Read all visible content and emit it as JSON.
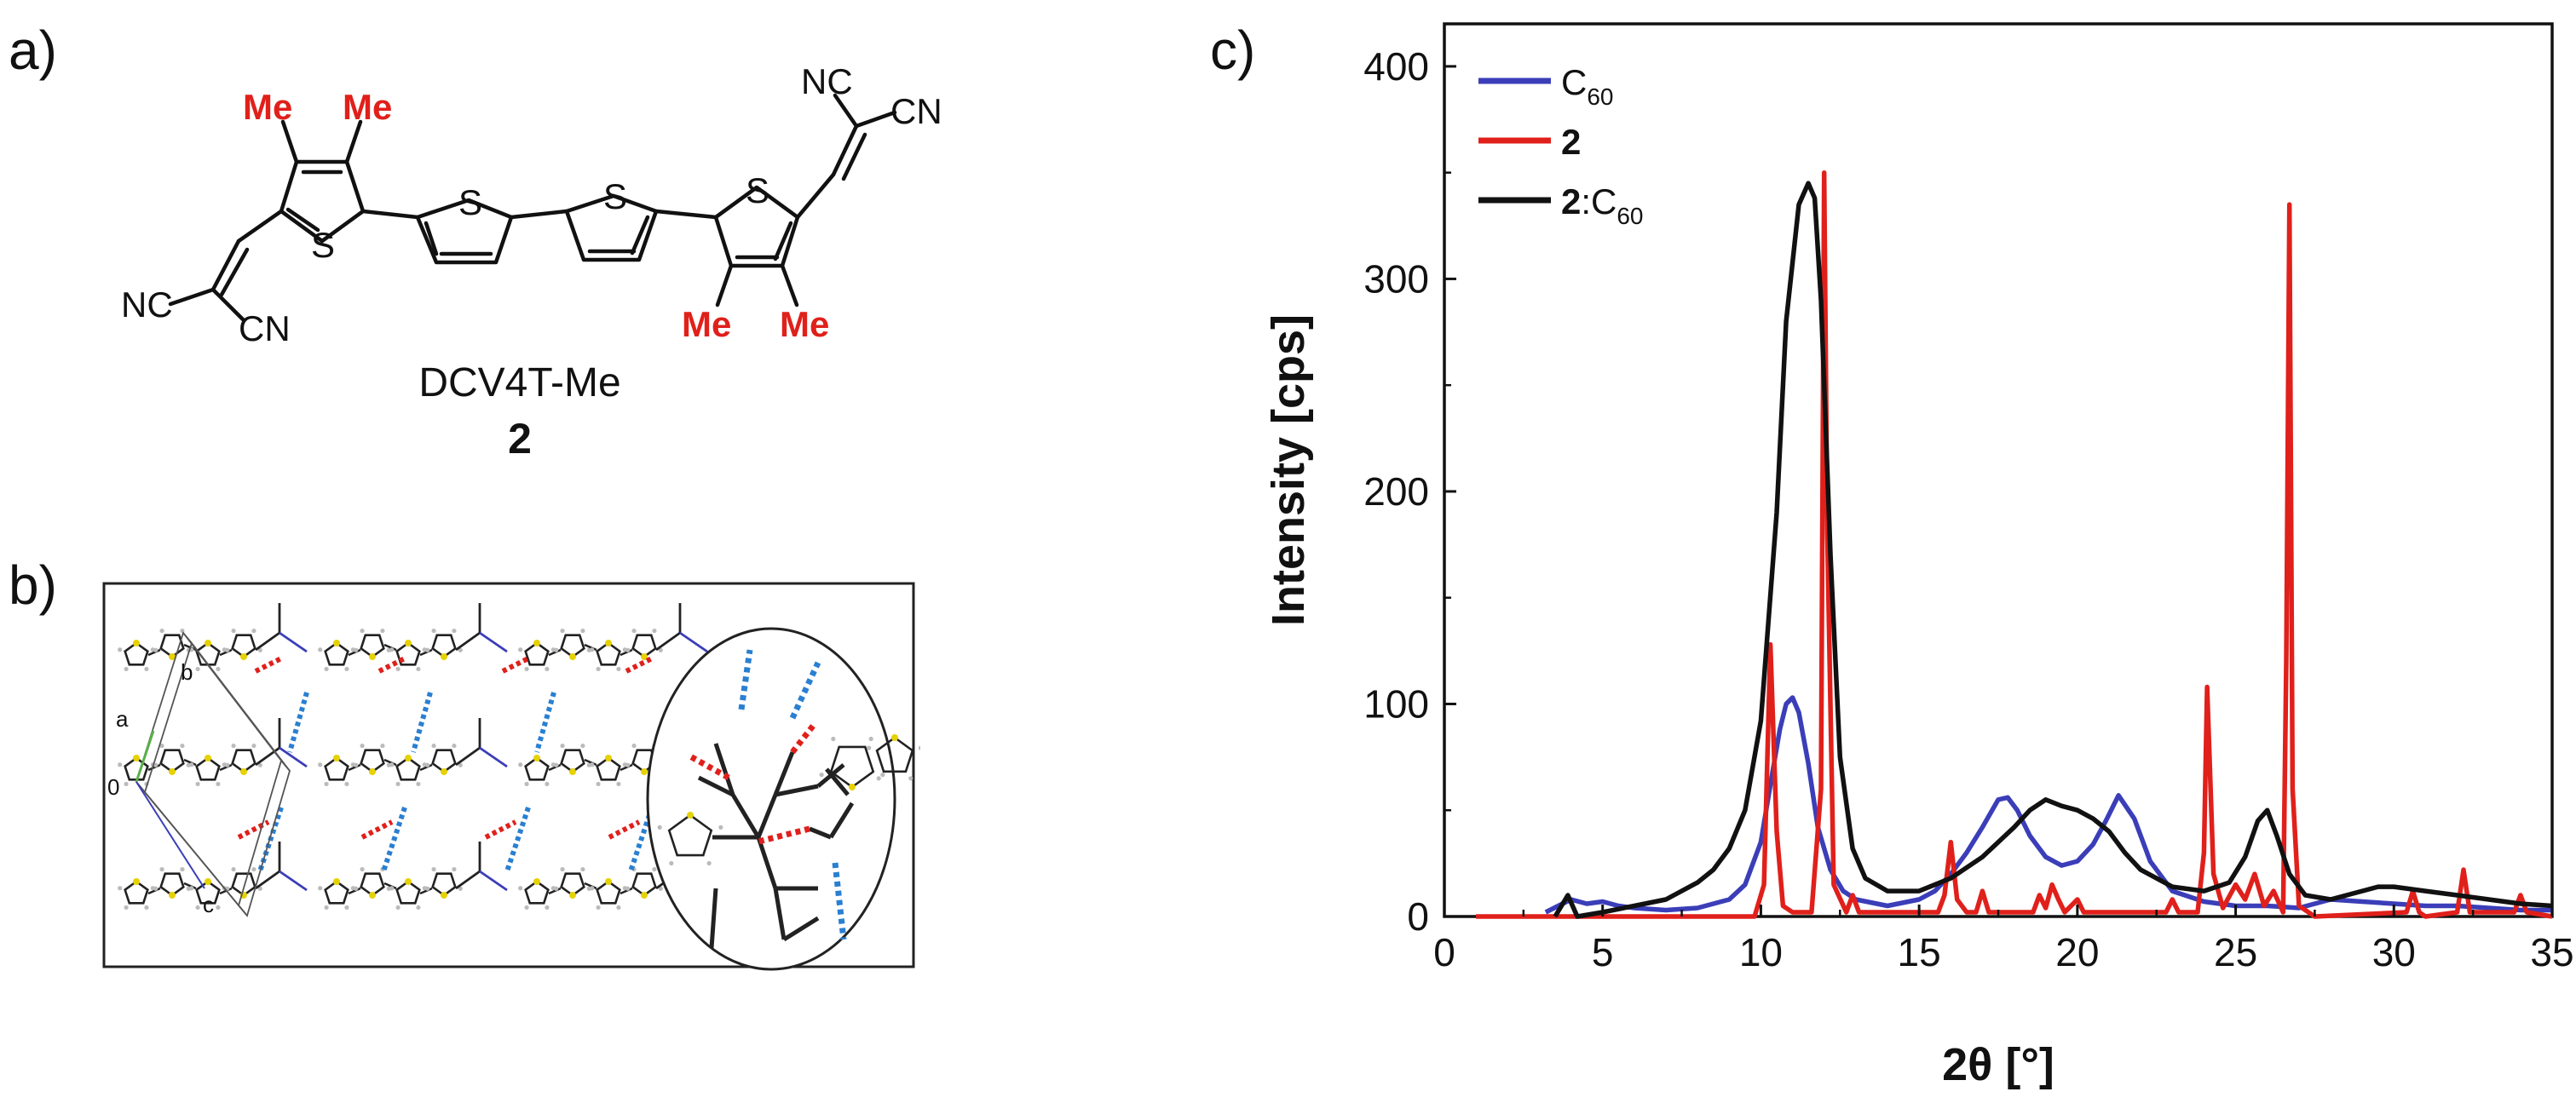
{
  "panels": {
    "a": "a)",
    "b": "b)",
    "c": "c)"
  },
  "molecule": {
    "name": "DCV4T-Me",
    "number": "2",
    "methyl_label": "Me",
    "sulfur_label": "S",
    "nitrile_label_left": "NC",
    "nitrile_label_right": "CN",
    "accent_color": "#e0201b"
  },
  "crystal": {
    "axis_labels": {
      "a": "a",
      "b": "b",
      "c": "c",
      "origin": "0"
    },
    "hbond_colors": {
      "red": "#e0201b",
      "blue": "#2a7fd1"
    },
    "sulfur_color": "#e6d200"
  },
  "chart_data": {
    "type": "line",
    "xlabel_symbol": "2θ",
    "xlabel_unit": "[°]",
    "ylabel": "Intensity [cps]",
    "xlim": [
      0,
      35
    ],
    "ylim": [
      0,
      420
    ],
    "xticks": [
      0,
      5,
      10,
      15,
      20,
      25,
      30,
      35
    ],
    "yticks": [
      0,
      100,
      200,
      300,
      400
    ],
    "legend_position": "top-left",
    "series": [
      {
        "name": "C60",
        "legend_bold": "C",
        "legend_sub": "60",
        "legend_plain": "",
        "color": "#3b3eb8",
        "x": [
          3.2,
          3.6,
          4.0,
          4.5,
          5.0,
          5.5,
          6.0,
          7.0,
          8.0,
          9.0,
          9.5,
          10.0,
          10.3,
          10.6,
          10.8,
          11.0,
          11.2,
          11.5,
          11.8,
          12.2,
          12.6,
          13.0,
          14.0,
          15.0,
          15.5,
          16.0,
          16.5,
          17.0,
          17.5,
          17.8,
          18.1,
          18.5,
          19.0,
          19.5,
          20.0,
          20.5,
          20.9,
          21.3,
          21.8,
          22.3,
          23.0,
          24.0,
          25.0,
          26.0,
          27.0,
          28.0,
          29.0,
          30.0,
          31.0,
          32.0,
          33.0,
          34.0,
          35.0
        ],
        "y": [
          2,
          5,
          8,
          6,
          7,
          5,
          4,
          3,
          4,
          8,
          15,
          35,
          62,
          88,
          100,
          103,
          96,
          72,
          42,
          22,
          12,
          8,
          5,
          8,
          12,
          20,
          30,
          42,
          55,
          56,
          50,
          38,
          28,
          24,
          26,
          34,
          45,
          57,
          46,
          26,
          12,
          7,
          5,
          5,
          4,
          8,
          7,
          6,
          5,
          5,
          4,
          3,
          3
        ]
      },
      {
        "name": "2",
        "legend_bold": "2",
        "legend_sub": "",
        "legend_plain": "",
        "color": "#e0201b",
        "x": [
          1.0,
          9.8,
          10.1,
          10.3,
          10.5,
          10.7,
          11.0,
          11.6,
          11.9,
          12.0,
          12.1,
          12.3,
          12.7,
          12.9,
          13.1,
          15.6,
          15.8,
          16.0,
          16.2,
          16.5,
          16.8,
          17.0,
          17.2,
          18.6,
          18.8,
          19.0,
          19.2,
          19.4,
          19.6,
          20.0,
          20.2,
          22.8,
          23.0,
          23.2,
          23.8,
          24.0,
          24.1,
          24.3,
          24.6,
          25.0,
          25.3,
          25.6,
          25.9,
          26.2,
          26.5,
          26.6,
          26.7,
          26.8,
          27.0,
          27.5,
          30.4,
          30.6,
          30.8,
          31.0,
          32.0,
          32.2,
          32.4,
          33.8,
          34.0,
          34.2,
          35.0
        ],
        "y": [
          0,
          0,
          15,
          128,
          40,
          5,
          2,
          2,
          60,
          350,
          180,
          15,
          2,
          10,
          2,
          2,
          10,
          35,
          8,
          2,
          2,
          12,
          2,
          2,
          10,
          4,
          15,
          8,
          2,
          8,
          2,
          2,
          8,
          2,
          2,
          30,
          108,
          20,
          4,
          15,
          8,
          20,
          5,
          12,
          2,
          120,
          335,
          60,
          5,
          0,
          2,
          12,
          2,
          0,
          2,
          22,
          2,
          2,
          10,
          2,
          0
        ]
      },
      {
        "name": "2:C60",
        "legend_bold": "2",
        "legend_sub": "60",
        "legend_plain": ":C",
        "color": "#111111",
        "x": [
          3.5,
          3.9,
          4.2,
          5.0,
          6.0,
          7.0,
          8.0,
          8.5,
          9.0,
          9.5,
          10.0,
          10.5,
          10.8,
          11.2,
          11.5,
          11.7,
          11.9,
          12.2,
          12.5,
          12.9,
          13.3,
          14.0,
          15.0,
          16.0,
          17.0,
          18.0,
          18.5,
          19.0,
          19.5,
          20.0,
          20.5,
          21.0,
          21.5,
          22.0,
          23.0,
          24.0,
          24.8,
          25.3,
          25.7,
          26.0,
          26.3,
          26.7,
          27.2,
          28.0,
          29.0,
          29.5,
          30.0,
          31.0,
          32.0,
          33.0,
          34.0,
          35.0
        ],
        "y": [
          0,
          10,
          0,
          2,
          5,
          8,
          16,
          22,
          32,
          50,
          92,
          190,
          280,
          335,
          345,
          338,
          290,
          170,
          75,
          32,
          18,
          12,
          12,
          18,
          28,
          42,
          50,
          55,
          52,
          50,
          46,
          40,
          30,
          22,
          14,
          12,
          16,
          28,
          45,
          50,
          38,
          20,
          10,
          8,
          12,
          14,
          14,
          12,
          10,
          8,
          6,
          5
        ]
      }
    ]
  }
}
